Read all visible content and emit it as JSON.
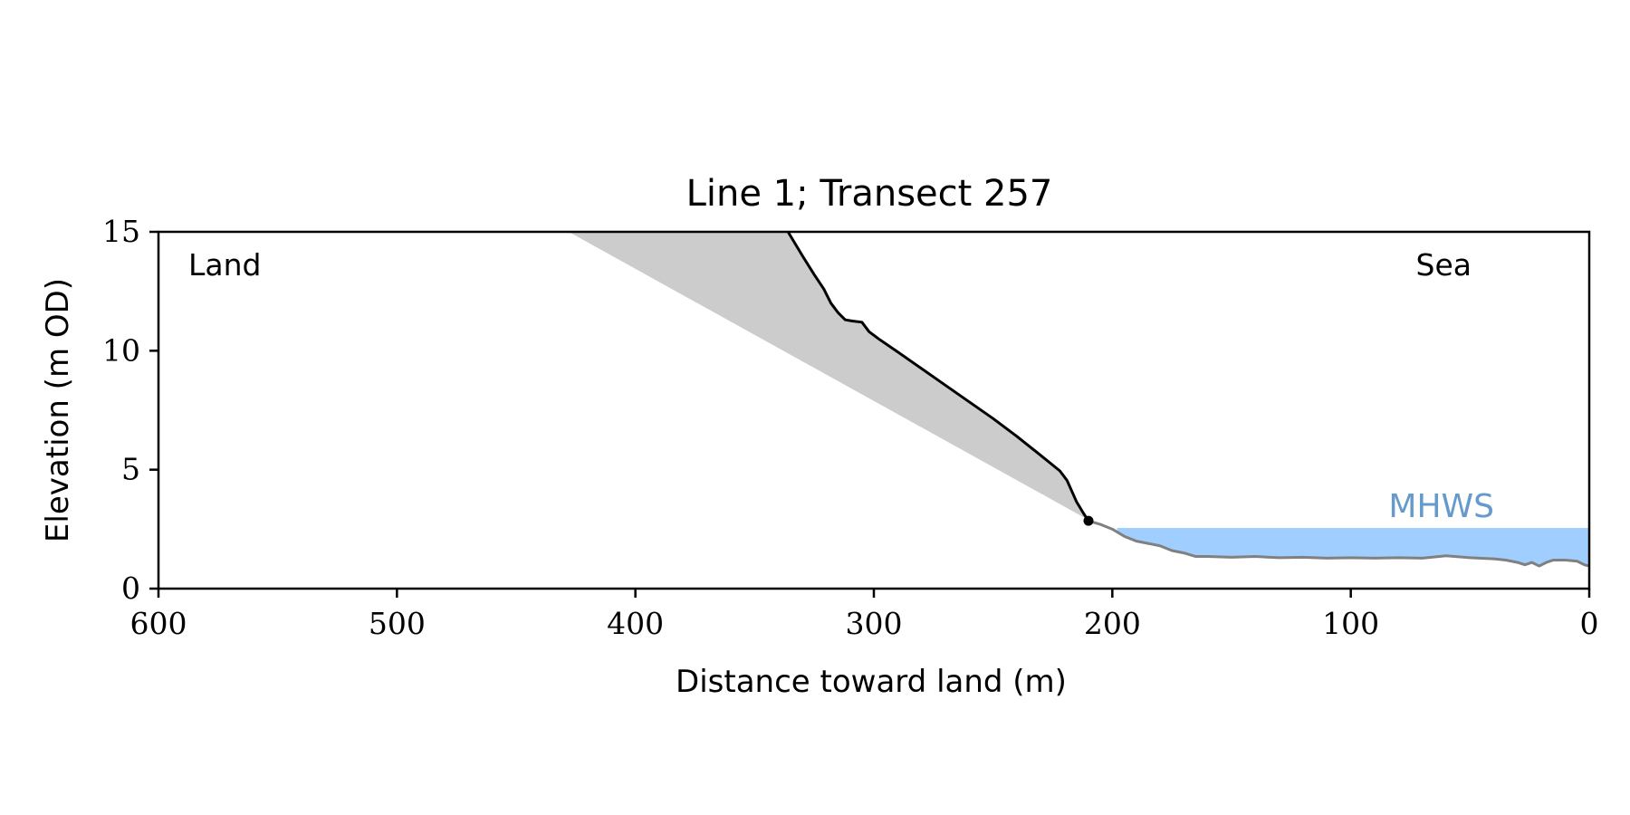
{
  "chart_data": {
    "type": "line",
    "title": "Line 1; Transect 257",
    "xlabel": "Distance toward land (m)",
    "ylabel": "Elevation (m OD)",
    "xlim": [
      600,
      0
    ],
    "ylim": [
      0,
      15
    ],
    "x_inverted": true,
    "xticks": [
      600,
      500,
      400,
      300,
      200,
      100,
      0
    ],
    "yticks": [
      0,
      5,
      10,
      15
    ],
    "grid": false,
    "annotations": {
      "land": "Land",
      "sea": "Sea",
      "mhws": "MHWS"
    },
    "mhws_level": 2.55,
    "mhws_x_range": [
      0,
      198
    ],
    "colors": {
      "profile": "#000000",
      "foreshore": "#808080",
      "slope_fill": "#cccccc",
      "water": "#a0cfff",
      "mhws_text": "#6699cc"
    },
    "series": [
      {
        "role": "cliff-profile",
        "x": [
          336,
          333,
          330,
          325,
          321,
          318,
          315,
          312,
          309,
          305,
          302,
          298,
          290,
          280,
          270,
          260,
          250,
          240,
          230,
          222,
          219,
          217,
          215,
          212,
          210
        ],
        "y": [
          15,
          14.5,
          14.0,
          13.2,
          12.6,
          12.0,
          11.6,
          11.3,
          11.25,
          11.2,
          10.8,
          10.5,
          9.95,
          9.25,
          8.55,
          7.85,
          7.15,
          6.4,
          5.6,
          4.95,
          4.55,
          4.1,
          3.65,
          3.15,
          2.85
        ]
      },
      {
        "role": "foreshore-profile",
        "x": [
          210,
          205,
          200,
          195,
          190,
          185,
          180,
          175,
          170,
          165,
          160,
          150,
          140,
          130,
          120,
          110,
          100,
          90,
          80,
          70,
          60,
          50,
          40,
          35,
          30,
          27,
          24,
          21,
          18,
          15,
          10,
          5,
          2,
          0
        ],
        "y": [
          2.85,
          2.7,
          2.5,
          2.2,
          2.0,
          1.9,
          1.8,
          1.6,
          1.5,
          1.35,
          1.35,
          1.32,
          1.35,
          1.3,
          1.32,
          1.28,
          1.3,
          1.28,
          1.3,
          1.28,
          1.38,
          1.3,
          1.25,
          1.2,
          1.1,
          1.0,
          1.1,
          0.95,
          1.1,
          1.2,
          1.2,
          1.15,
          1.0,
          0.95
        ]
      },
      {
        "role": "projected-slope",
        "x": [
          428,
          212
        ],
        "y": [
          15,
          3.0
        ]
      }
    ],
    "markers": [
      {
        "role": "cliff-toe",
        "x": 210,
        "y": 2.85
      }
    ]
  }
}
